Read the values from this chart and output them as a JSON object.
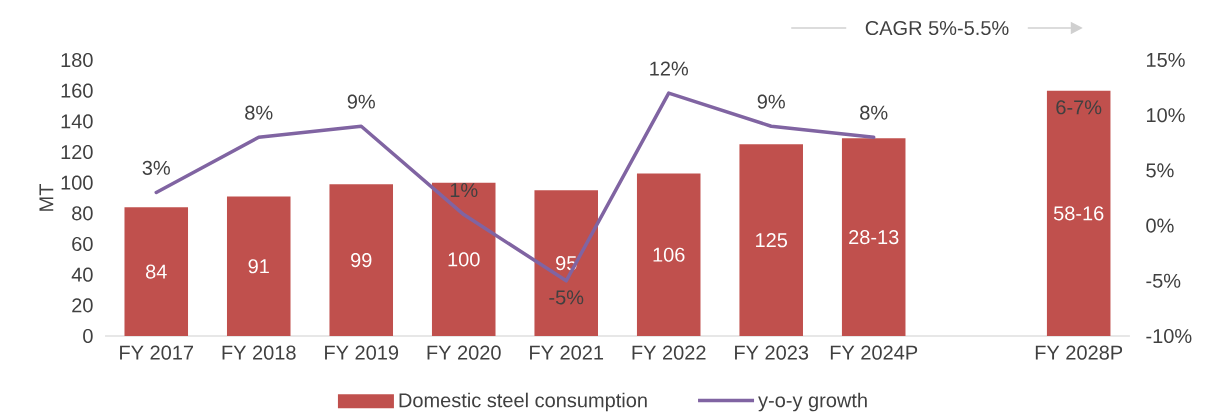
{
  "chart_data": {
    "type": "bar",
    "categories": [
      "FY 2017",
      "FY 2018",
      "FY 2019",
      "FY 2020",
      "FY 2021",
      "FY 2022",
      "FY 2023",
      "FY 2024P",
      null,
      "FY 2028P"
    ],
    "ylabel": "MT",
    "ylim": [
      0,
      180
    ],
    "yticks": [
      0,
      20,
      40,
      60,
      80,
      100,
      120,
      140,
      160,
      180
    ],
    "y2lim": [
      -10,
      15
    ],
    "y2ticks": [
      {
        "value": -10,
        "label": "-10%"
      },
      {
        "value": -5,
        "label": "-5%"
      },
      {
        "value": 0,
        "label": "0%"
      },
      {
        "value": 5,
        "label": "5%"
      },
      {
        "value": 10,
        "label": "10%"
      },
      {
        "value": 15,
        "label": "15%"
      }
    ],
    "series": [
      {
        "name": "Domestic steel consumption",
        "color": "#c0504d",
        "values": [
          84,
          91,
          99,
          100,
          95,
          106,
          125,
          129,
          null,
          160
        ],
        "value_labels": [
          "84",
          "91",
          "99",
          "100",
          "95",
          "106",
          "125",
          "28-13",
          null,
          "58-16"
        ]
      },
      {
        "name": "y-o-y growth",
        "type": "line",
        "axis": "y2",
        "color": "#8064a2",
        "values": [
          3,
          8,
          9,
          1,
          -5,
          12,
          9,
          8,
          null,
          null
        ],
        "value_labels": [
          "3%",
          "8%",
          "9%",
          "1%",
          "-5%",
          "12%",
          "9%",
          "8%",
          null,
          null
        ]
      }
    ],
    "annotations": [
      "CAGR 5%-5.5%",
      "6-7%"
    ],
    "legend": "bottom"
  }
}
